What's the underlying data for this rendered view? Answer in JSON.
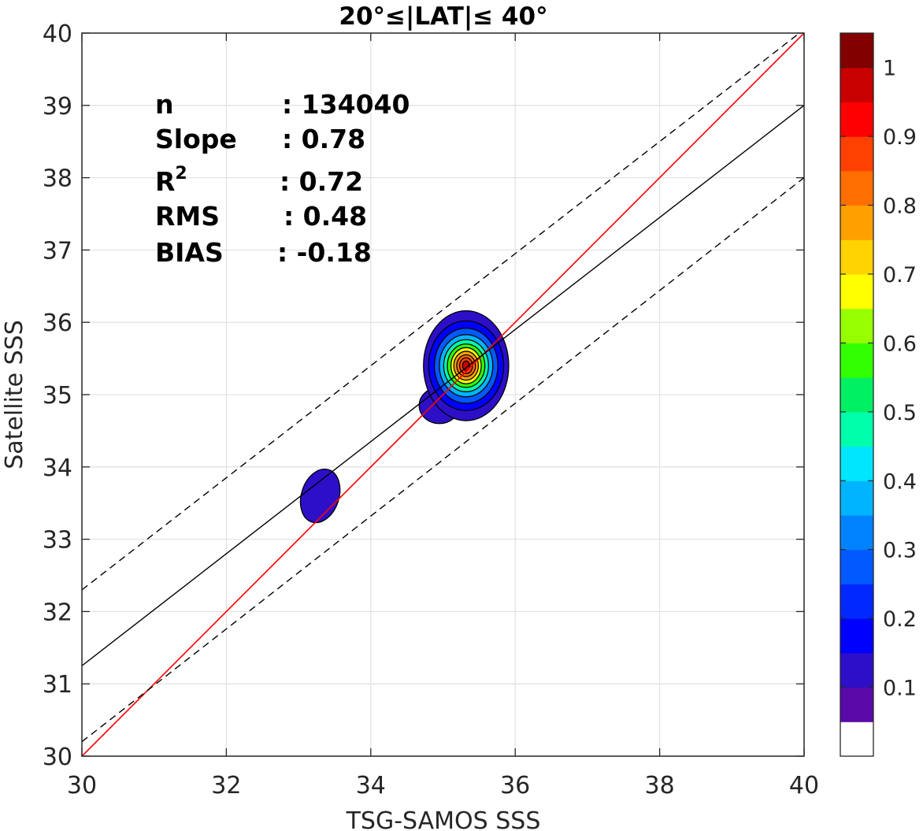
{
  "chart_data": {
    "type": "contour",
    "title": "20°≤|LAT|≤ 40°",
    "xlabel": "TSG-SAMOS SSS",
    "ylabel": "Satellite SSS",
    "xlim": [
      30,
      40
    ],
    "ylim": [
      30,
      40
    ],
    "xticks": [
      "30",
      "32",
      "34",
      "36",
      "38",
      "40"
    ],
    "yticks": [
      "30",
      "31",
      "32",
      "33",
      "34",
      "35",
      "36",
      "37",
      "38",
      "39",
      "40"
    ],
    "grid": true,
    "stats": [
      {
        "key": "n",
        "value": ": 134040"
      },
      {
        "key": "Slope",
        "value": ": 0.78"
      },
      {
        "key": "R",
        "sup": "2",
        "value": ": 0.72"
      },
      {
        "key": "RMS",
        "value": ": 0.48"
      },
      {
        "key": "BIAS",
        "value": ": -0.18"
      }
    ],
    "lines": {
      "one_to_one": {
        "slope": 1,
        "intercept": 0,
        "color": "#ff0000"
      },
      "fit": {
        "x1": 30,
        "y1": 31.25,
        "x2": 40,
        "y2": 39.0,
        "color": "#000000"
      },
      "upper_dashed": {
        "x1": 30,
        "y1": 32.3,
        "x2": 40,
        "y2": 40.05,
        "color": "#000000"
      },
      "lower_dashed": {
        "x1": 30,
        "y1": 30.2,
        "x2": 40,
        "y2": 38.0,
        "color": "#000000"
      }
    },
    "density_peak": {
      "x": 35.35,
      "y": 35.45,
      "value": 1.0
    },
    "secondary_cluster": {
      "x": 33.3,
      "y": 33.6
    },
    "colorbar": {
      "ticks": [
        "0.1",
        "0.2",
        "0.3",
        "0.4",
        "0.5",
        "0.6",
        "0.7",
        "0.8",
        "0.9",
        "1"
      ],
      "colors": [
        "#ffffff",
        "#5a0aa8",
        "#2d0fc8",
        "#0000ff",
        "#0028ff",
        "#005aff",
        "#0082ff",
        "#00b4ff",
        "#00e6ff",
        "#00ffaa",
        "#00f064",
        "#32ff00",
        "#96ff00",
        "#ffff00",
        "#ffd200",
        "#ffa000",
        "#ff6e00",
        "#ff4000",
        "#ff0000",
        "#c80000",
        "#820000"
      ]
    }
  }
}
